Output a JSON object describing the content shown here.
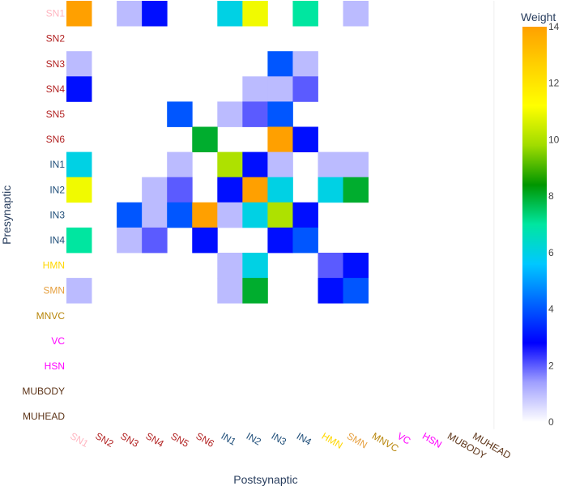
{
  "chart_data": {
    "type": "heatmap",
    "title": "",
    "xlabel": "Postsynaptic",
    "ylabel": "Presynaptic",
    "colorbar_title": "Weight",
    "colorbar_ticks": [
      0,
      2,
      4,
      6,
      8,
      10,
      12,
      14
    ],
    "zrange": [
      0,
      14
    ],
    "colorscale": [
      [
        0.0,
        "#ffffff"
      ],
      [
        0.1,
        "#a0a0ff"
      ],
      [
        0.2,
        "#0000ff"
      ],
      [
        0.3,
        "#0064ff"
      ],
      [
        0.4,
        "#00c8ff"
      ],
      [
        0.5,
        "#00e6a0"
      ],
      [
        0.6,
        "#009600"
      ],
      [
        0.7,
        "#a0dc00"
      ],
      [
        0.8,
        "#ffff00"
      ],
      [
        0.9,
        "#ffd200"
      ],
      [
        1.0,
        "#ffa000"
      ]
    ],
    "x_labels": [
      "SN1",
      "SN2",
      "SN3",
      "SN4",
      "SN5",
      "SN6",
      "IN1",
      "IN2",
      "IN3",
      "IN4",
      "HMN",
      "SMN",
      "MNVC",
      "VC",
      "HSN",
      "MUBODY",
      "MUHEAD"
    ],
    "y_labels": [
      "SN1",
      "SN2",
      "SN3",
      "SN4",
      "SN5",
      "SN6",
      "IN1",
      "IN2",
      "IN3",
      "IN4",
      "HMN",
      "SMN",
      "MNVC",
      "VC",
      "HSN",
      "MUBODY",
      "MUHEAD"
    ],
    "label_colors": {
      "SN1": "#ffb6c1",
      "SN2": "#b22222",
      "SN3": "#b22222",
      "SN4": "#b22222",
      "SN5": "#b22222",
      "SN6": "#b22222",
      "IN1": "#1f4e79",
      "IN2": "#1f4e79",
      "IN3": "#1f4e79",
      "IN4": "#1f4e79",
      "HMN": "#ffd700",
      "SMN": "#e6a040",
      "MNVC": "#b8860b",
      "VC": "#ff00ff",
      "HSN": "#ff00ff",
      "MUBODY": "#5c3317",
      "MUHEAD": "#5c3317"
    },
    "z": [
      [
        14,
        0,
        1,
        3,
        0,
        0,
        6,
        11,
        0,
        7,
        0,
        1,
        0,
        0,
        0,
        0,
        0
      ],
      [
        0,
        0,
        0,
        0,
        0,
        0,
        0,
        0,
        0,
        0,
        0,
        0,
        0,
        0,
        0,
        0,
        0
      ],
      [
        1,
        0,
        0,
        0,
        0,
        0,
        0,
        0,
        4,
        1,
        0,
        0,
        0,
        0,
        0,
        0,
        0
      ],
      [
        3,
        0,
        0,
        0,
        0,
        0,
        0,
        1,
        1,
        2,
        0,
        0,
        0,
        0,
        0,
        0,
        0
      ],
      [
        0,
        0,
        0,
        0,
        4,
        0,
        1,
        2,
        4,
        0,
        0,
        0,
        0,
        0,
        0,
        0,
        0
      ],
      [
        0,
        0,
        0,
        0,
        0,
        8,
        0,
        0,
        14,
        3,
        0,
        0,
        0,
        0,
        0,
        0,
        0
      ],
      [
        6,
        0,
        0,
        0,
        1,
        0,
        10,
        3,
        1,
        0,
        1,
        1,
        0,
        0,
        0,
        0,
        0
      ],
      [
        11,
        0,
        0,
        1,
        2,
        0,
        3,
        14,
        6,
        0,
        6,
        8,
        0,
        0,
        0,
        0,
        0
      ],
      [
        0,
        0,
        4,
        1,
        4,
        14,
        1,
        6,
        10,
        3,
        0,
        0,
        0,
        0,
        0,
        0,
        0
      ],
      [
        7,
        0,
        1,
        2,
        0,
        3,
        0,
        0,
        3,
        4,
        0,
        0,
        0,
        0,
        0,
        0,
        0
      ],
      [
        0,
        0,
        0,
        0,
        0,
        0,
        1,
        6,
        0,
        0,
        2,
        3,
        0,
        0,
        0,
        0,
        0
      ],
      [
        1,
        0,
        0,
        0,
        0,
        0,
        1,
        8,
        0,
        0,
        3,
        4,
        0,
        0,
        0,
        0,
        0
      ],
      [
        0,
        0,
        0,
        0,
        0,
        0,
        0,
        0,
        0,
        0,
        0,
        0,
        0,
        0,
        0,
        0,
        0
      ],
      [
        0,
        0,
        0,
        0,
        0,
        0,
        0,
        0,
        0,
        0,
        0,
        0,
        0,
        0,
        0,
        0,
        0
      ],
      [
        0,
        0,
        0,
        0,
        0,
        0,
        0,
        0,
        0,
        0,
        0,
        0,
        0,
        0,
        0,
        0,
        0
      ],
      [
        0,
        0,
        0,
        0,
        0,
        0,
        0,
        0,
        0,
        0,
        0,
        0,
        0,
        0,
        0,
        0,
        0
      ],
      [
        0,
        0,
        0,
        0,
        0,
        0,
        0,
        0,
        0,
        0,
        0,
        0,
        0,
        0,
        0,
        0,
        0
      ]
    ]
  }
}
